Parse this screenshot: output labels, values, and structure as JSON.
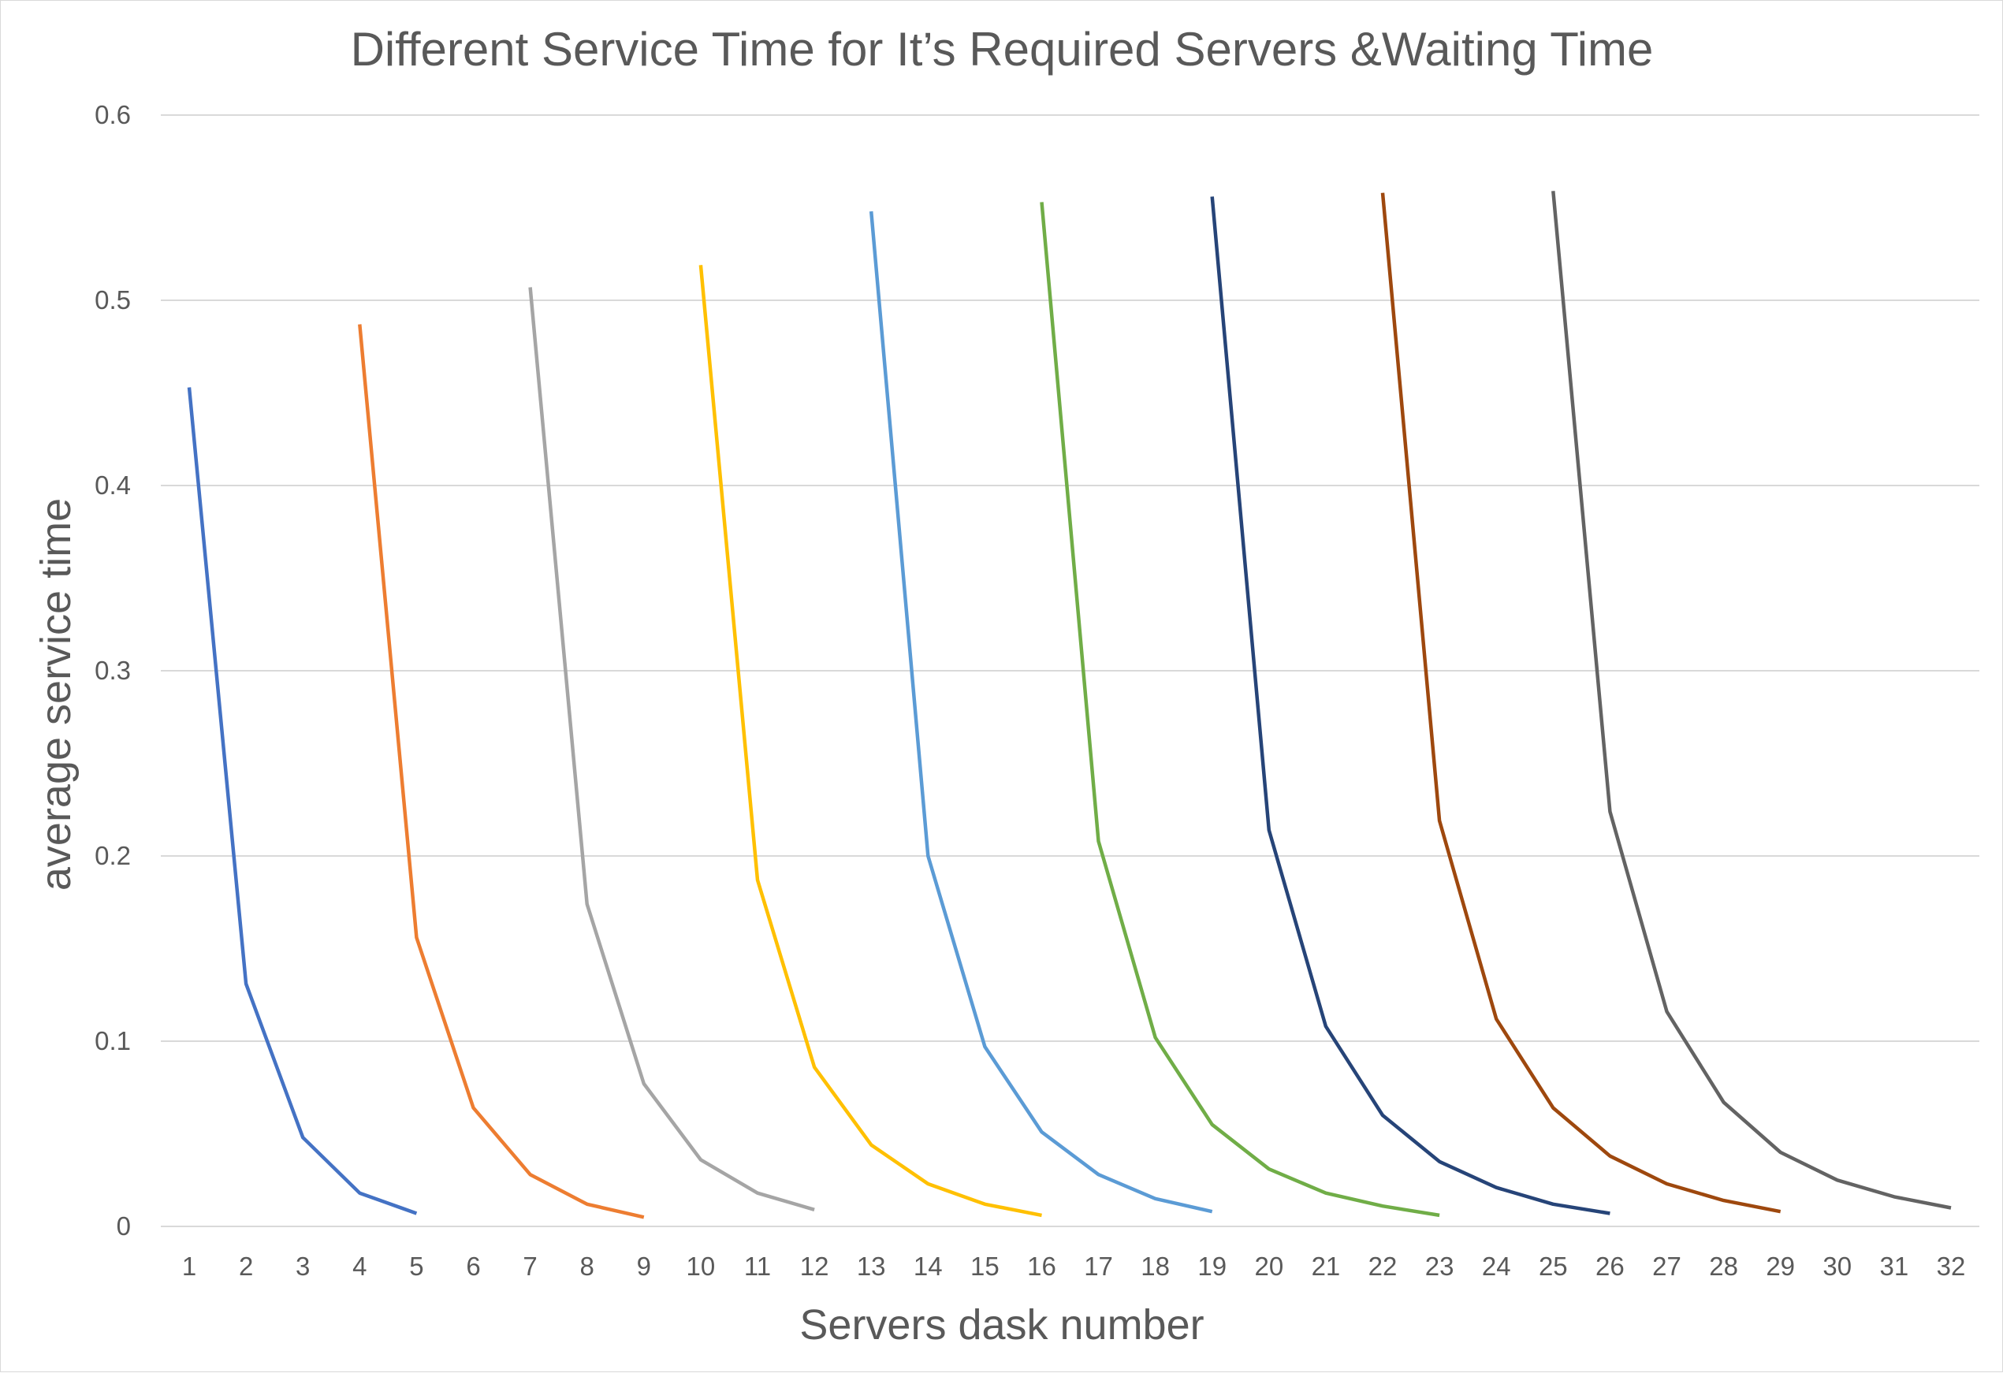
{
  "chart_data": {
    "type": "line",
    "title": "Different Service Time for It’s Required Servers &Waiting Time",
    "xlabel": "Servers dask number",
    "ylabel": "average  service time",
    "x_categories": [
      "1",
      "2",
      "3",
      "4",
      "5",
      "6",
      "7",
      "8",
      "9",
      "10",
      "11",
      "12",
      "13",
      "14",
      "15",
      "16",
      "17",
      "18",
      "19",
      "20",
      "21",
      "22",
      "23",
      "24",
      "25",
      "26",
      "27",
      "28",
      "29",
      "30",
      "31",
      "32"
    ],
    "ylim": [
      0,
      0.6
    ],
    "y_ticks": [
      "0",
      "0.1",
      "0.2",
      "0.3",
      "0.4",
      "0.5",
      "0.6"
    ],
    "y_tick_values": [
      0,
      0.1,
      0.2,
      0.3,
      0.4,
      0.5,
      0.6
    ],
    "grid": true,
    "legend": "none",
    "series": [
      {
        "color": "#4472c4",
        "x": [
          1,
          2,
          3,
          4,
          5
        ],
        "values": [
          0.453,
          0.131,
          0.048,
          0.018,
          0.007
        ]
      },
      {
        "color": "#ed7d31",
        "x": [
          4,
          5,
          6,
          7,
          8,
          9
        ],
        "values": [
          0.487,
          0.156,
          0.064,
          0.028,
          0.012,
          0.005
        ]
      },
      {
        "color": "#a5a5a5",
        "x": [
          7,
          8,
          9,
          10,
          11,
          12
        ],
        "values": [
          0.507,
          0.174,
          0.077,
          0.036,
          0.018,
          0.009
        ]
      },
      {
        "color": "#ffc000",
        "x": [
          10,
          11,
          12,
          13,
          14,
          15,
          16
        ],
        "values": [
          0.519,
          0.187,
          0.086,
          0.044,
          0.023,
          0.012,
          0.006
        ]
      },
      {
        "color": "#5b9bd5",
        "x": [
          13,
          14,
          15,
          16,
          17,
          18,
          19
        ],
        "values": [
          0.548,
          0.2,
          0.097,
          0.051,
          0.028,
          0.015,
          0.008
        ]
      },
      {
        "color": "#70ad47",
        "x": [
          16,
          17,
          18,
          19,
          20,
          21,
          22,
          23
        ],
        "values": [
          0.553,
          0.208,
          0.102,
          0.055,
          0.031,
          0.018,
          0.011,
          0.006
        ]
      },
      {
        "color": "#264478",
        "x": [
          19,
          20,
          21,
          22,
          23,
          24,
          25,
          26
        ],
        "values": [
          0.556,
          0.214,
          0.108,
          0.06,
          0.035,
          0.021,
          0.012,
          0.007
        ]
      },
      {
        "color": "#9e480e",
        "x": [
          22,
          23,
          24,
          25,
          26,
          27,
          28,
          29
        ],
        "values": [
          0.558,
          0.219,
          0.112,
          0.064,
          0.038,
          0.023,
          0.014,
          0.008
        ]
      },
      {
        "color": "#636363",
        "x": [
          25,
          26,
          27,
          28,
          29,
          30,
          31,
          32
        ],
        "values": [
          0.559,
          0.224,
          0.116,
          0.067,
          0.04,
          0.025,
          0.016,
          0.01
        ]
      }
    ]
  }
}
